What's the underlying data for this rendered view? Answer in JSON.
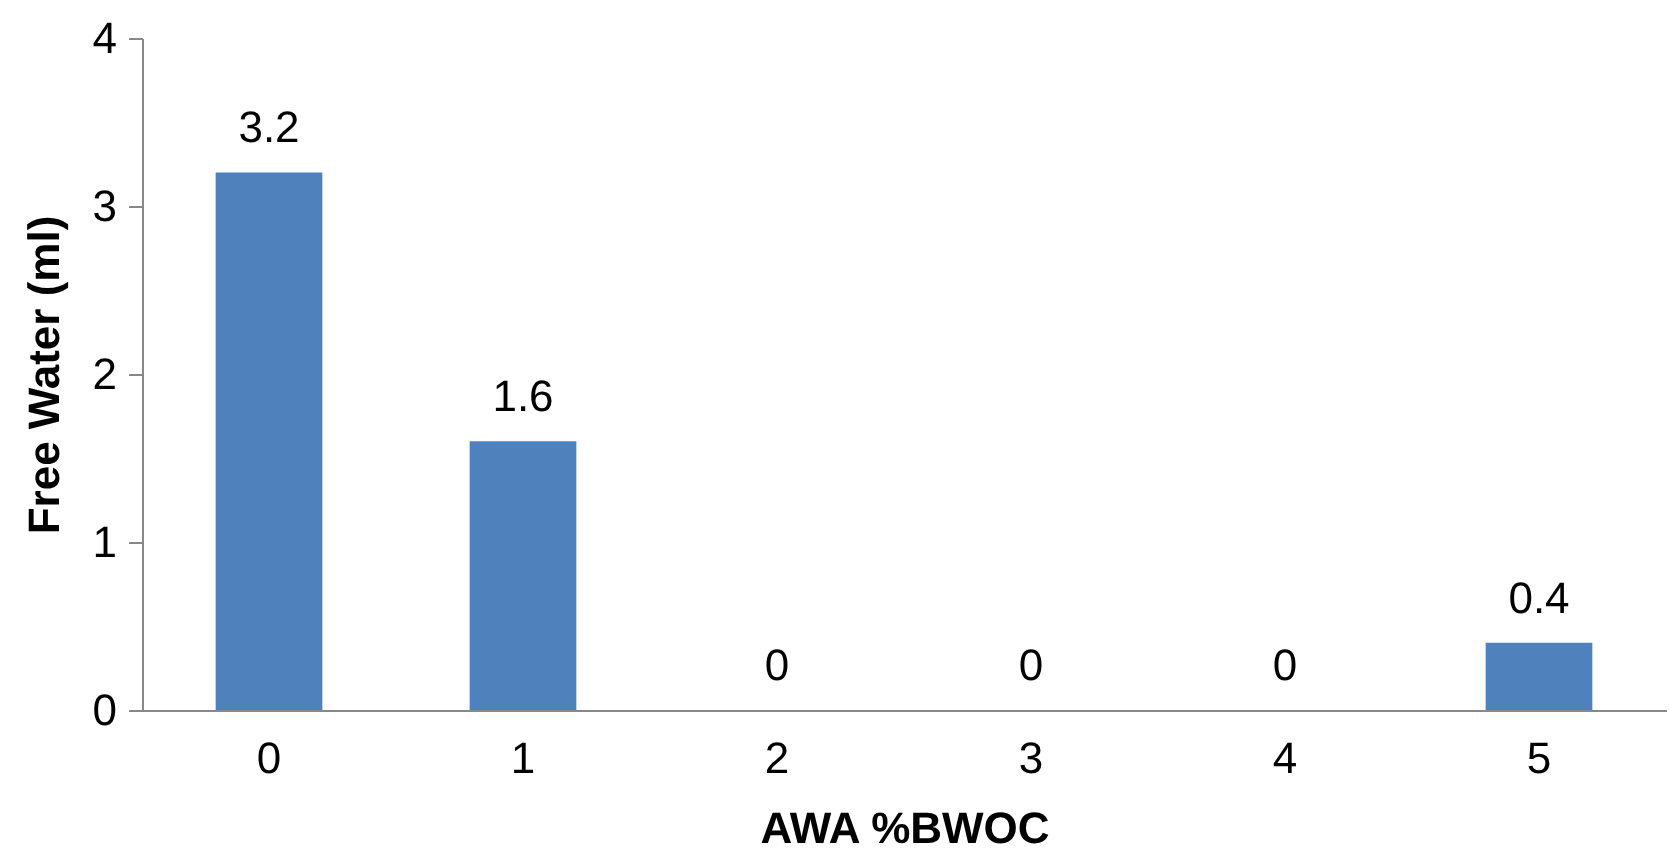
{
  "chart_data": {
    "type": "bar",
    "xlabel": "AWA %BWOC",
    "ylabel": "Free Water (ml)",
    "categories": [
      "0",
      "1",
      "2",
      "3",
      "4",
      "5"
    ],
    "values": [
      3.2,
      1.6,
      0,
      0,
      0,
      0.4
    ],
    "color": "#4f81bd",
    "ylim": [
      0,
      4
    ],
    "yticks": [
      0,
      1,
      2,
      3,
      4
    ],
    "data_labels": true,
    "grid": false
  }
}
